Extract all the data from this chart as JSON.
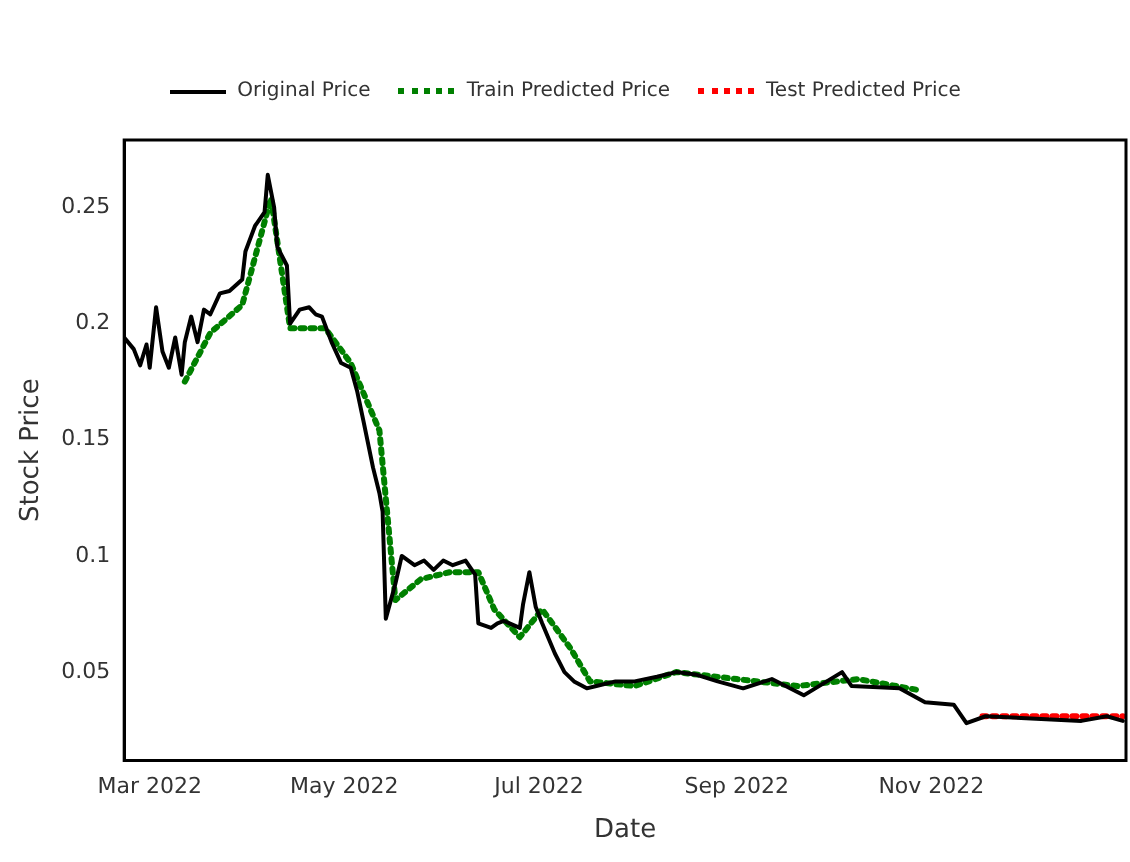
{
  "chart_data": {
    "type": "line",
    "xlabel": "Date",
    "ylabel": "Stock Price",
    "legend": "top",
    "grid": false,
    "marker": "none",
    "xlim": [
      "2022-02-21",
      "2023-01-01"
    ],
    "xticks": [
      {
        "value": "2022-03-01",
        "label": "Mar 2022"
      },
      {
        "value": "2022-05-01",
        "label": "May 2022"
      },
      {
        "value": "2022-07-01",
        "label": "Jul 2022"
      },
      {
        "value": "2022-09-01",
        "label": "Sep 2022"
      },
      {
        "value": "2022-11-01",
        "label": "Nov 2022"
      }
    ],
    "ylim": [
      0.012,
      0.279
    ],
    "yticks": [
      0.05,
      0.1,
      0.15,
      0.2,
      0.25
    ],
    "series": [
      {
        "name": "Original Price",
        "color": "#000000",
        "line_style": "solid",
        "x": [
          "2022-02-21",
          "2022-02-24",
          "2022-02-26",
          "2022-02-28",
          "2022-03-01",
          "2022-03-03",
          "2022-03-05",
          "2022-03-07",
          "2022-03-09",
          "2022-03-11",
          "2022-03-12",
          "2022-03-14",
          "2022-03-16",
          "2022-03-18",
          "2022-03-20",
          "2022-03-23",
          "2022-03-26",
          "2022-03-30",
          "2022-03-31",
          "2022-04-03",
          "2022-04-06",
          "2022-04-07",
          "2022-04-09",
          "2022-04-10",
          "2022-04-13",
          "2022-04-14",
          "2022-04-17",
          "2022-04-20",
          "2022-04-22",
          "2022-04-24",
          "2022-04-27",
          "2022-04-30",
          "2022-05-03",
          "2022-05-05",
          "2022-05-07",
          "2022-05-10",
          "2022-05-12",
          "2022-05-13",
          "2022-05-14",
          "2022-05-17",
          "2022-05-19",
          "2022-05-23",
          "2022-05-26",
          "2022-05-29",
          "2022-06-01",
          "2022-06-04",
          "2022-06-08",
          "2022-06-11",
          "2022-06-12",
          "2022-06-16",
          "2022-06-18",
          "2022-06-20",
          "2022-06-25",
          "2022-06-26",
          "2022-06-28",
          "2022-06-30",
          "2022-07-02",
          "2022-07-06",
          "2022-07-09",
          "2022-07-12",
          "2022-07-16",
          "2022-07-19",
          "2022-07-25",
          "2022-07-31",
          "2022-08-07",
          "2022-08-13",
          "2022-08-19",
          "2022-08-26",
          "2022-09-03",
          "2022-09-12",
          "2022-09-22",
          "2022-10-04",
          "2022-10-07",
          "2022-10-22",
          "2022-10-30",
          "2022-11-08",
          "2022-11-12",
          "2022-11-18",
          "2022-12-18",
          "2022-12-26",
          "2022-12-31"
        ],
        "values": [
          0.194,
          0.189,
          0.182,
          0.191,
          0.181,
          0.207,
          0.188,
          0.181,
          0.194,
          0.178,
          0.192,
          0.203,
          0.192,
          0.206,
          0.204,
          0.213,
          0.214,
          0.219,
          0.231,
          0.242,
          0.248,
          0.264,
          0.25,
          0.233,
          0.225,
          0.2,
          0.206,
          0.207,
          0.204,
          0.203,
          0.192,
          0.183,
          0.181,
          0.171,
          0.158,
          0.138,
          0.127,
          0.119,
          0.073,
          0.088,
          0.1,
          0.096,
          0.098,
          0.094,
          0.098,
          0.096,
          0.098,
          0.092,
          0.071,
          0.069,
          0.071,
          0.072,
          0.069,
          0.079,
          0.093,
          0.078,
          0.071,
          0.058,
          0.05,
          0.046,
          0.043,
          0.044,
          0.046,
          0.046,
          0.048,
          0.05,
          0.049,
          0.046,
          0.043,
          0.047,
          0.04,
          0.05,
          0.044,
          0.043,
          0.037,
          0.036,
          0.028,
          0.031,
          0.029,
          0.031,
          0.029
        ]
      },
      {
        "name": "Train Predicted Price",
        "color": "#008000",
        "line_style": "dotted",
        "x": [
          "2022-03-12",
          "2022-03-20",
          "2022-03-30",
          "2022-04-08",
          "2022-04-14",
          "2022-04-25",
          "2022-05-03",
          "2022-05-12",
          "2022-05-17",
          "2022-05-25",
          "2022-06-03",
          "2022-06-12",
          "2022-06-17",
          "2022-06-25",
          "2022-07-02",
          "2022-07-11",
          "2022-07-17",
          "2022-07-31",
          "2022-08-13",
          "2022-09-01",
          "2022-09-20",
          "2022-10-09",
          "2022-10-29"
        ],
        "values": [
          0.175,
          0.196,
          0.208,
          0.254,
          0.198,
          0.198,
          0.183,
          0.154,
          0.081,
          0.09,
          0.093,
          0.093,
          0.077,
          0.065,
          0.077,
          0.06,
          0.046,
          0.044,
          0.05,
          0.047,
          0.044,
          0.047,
          0.042
        ]
      },
      {
        "name": "Test Predicted Price",
        "color": "#ff0000",
        "line_style": "dotted",
        "x": [
          "2022-11-17",
          "2022-12-31"
        ],
        "values": [
          0.031,
          0.031
        ]
      }
    ]
  }
}
